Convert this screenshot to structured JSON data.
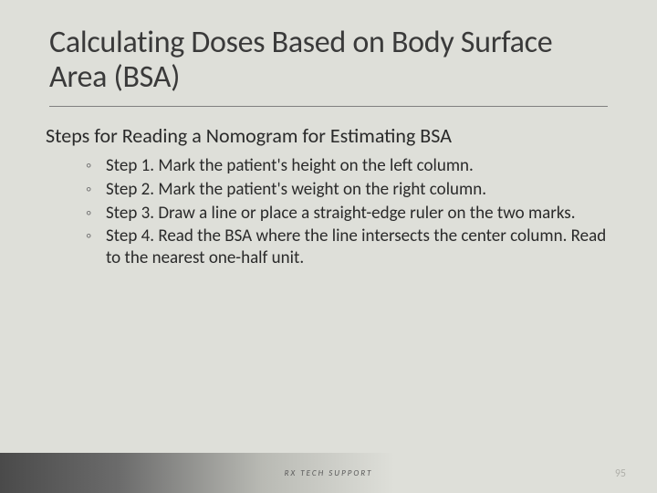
{
  "slide": {
    "title": "Calculating Doses Based on Body Surface Area (BSA)",
    "subtitle": "Steps for Reading a Nomogram for Estimating BSA",
    "steps": [
      "Step 1. Mark the patient's height on the left column.",
      "Step 2. Mark the patient's weight on the right column.",
      "Step 3. Draw a line or place a straight-edge ruler on the two marks.",
      "Step 4. Read the BSA where the line intersects the center column. Read to the nearest one-half unit."
    ],
    "footer": "RX TECH SUPPORT",
    "page_number": "95"
  },
  "style": {
    "background_color": "#dedfd9",
    "title_color": "#3a3a3a",
    "title_fontsize": 34,
    "title_fontweight": 400,
    "subtitle_fontsize": 22,
    "body_fontsize": 19,
    "body_color": "#2a2a2a",
    "divider_color": "#808080",
    "bullet_color": "#7a7a7a",
    "footer_gradient": [
      "#4a4a4a",
      "#6b6b6b",
      "#b9bab4",
      "#dedfd9"
    ],
    "footer_text_color": "#5a5a5a",
    "footer_fontsize": 9,
    "page_num_color": "#b0b0aa",
    "page_num_fontsize": 12,
    "font_family": "Calibri"
  }
}
